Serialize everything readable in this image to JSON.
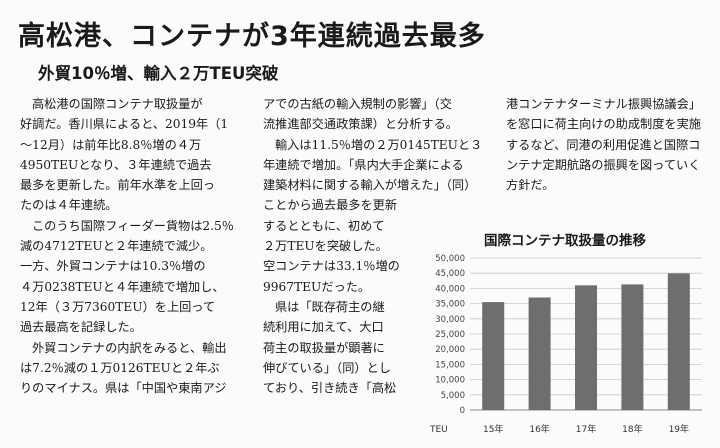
{
  "article": {
    "headline": "高松港、コンテナが3年連続過去最多",
    "subheadline": "外貿10％増、輸入２万TEU突破",
    "columns": [
      [
        {
          "text": "高松港の国際コンテナ取扱量が",
          "indent": true
        },
        {
          "text": "好調だ。香川県によると、2019年（1"
        },
        {
          "text": "〜12月）は前年比8.8％増の４万"
        },
        {
          "text": "4950TEUとなり、３年連続で過去"
        },
        {
          "text": "最多を更新した。前年水準を上回っ"
        },
        {
          "text": "たのは４年連続。"
        },
        {
          "text": "このうち国際フィーダー貨物は2.5％",
          "indent": true
        },
        {
          "text": "減の4712TEUと２年連続で減少。"
        },
        {
          "text": "一方、外貿コンテナは10.3％増の"
        },
        {
          "text": "４万0238TEUと４年連続で増加し、"
        },
        {
          "text": "12年（３万7360TEU）を上回って"
        },
        {
          "text": "過去最高を記録した。"
        },
        {
          "text": "外貿コンテナの内訳をみると、輸出",
          "indent": true
        },
        {
          "text": "は7.2％減の１万0126TEUと２年ぶ"
        },
        {
          "text": "りのマイナス。県は「中国や東南アジ"
        }
      ],
      [
        {
          "text": "アでの古紙の輸入規制の影響」（交"
        },
        {
          "text": "流推進部交通政策課）と分析する。"
        },
        {
          "text": "輸入は11.5％増の２万0145TEUと３",
          "indent": true
        },
        {
          "text": "年連続で増加。「県内大手企業による"
        },
        {
          "text": "建築材料に関する輸入が増えた」（同）"
        },
        {
          "text": "ことから過去最多を更新"
        },
        {
          "text": "するとともに、初めて"
        },
        {
          "text": "２万TEUを突破した。"
        },
        {
          "text": "空コンテナは33.1％増の"
        },
        {
          "text": "9967TEUだった。"
        },
        {
          "text": "県は「既存荷主の継",
          "indent": true
        },
        {
          "text": "続利用に加えて、大口"
        },
        {
          "text": "荷主の取扱量が顕著に"
        },
        {
          "text": "伸びている」（同）とし"
        },
        {
          "text": "ており、引き続き「高松"
        }
      ],
      [
        {
          "text": "港コンテナターミナル振興協議会」"
        },
        {
          "text": "を窓口に荷主向けの助成制度を実施"
        },
        {
          "text": "するなど、同港の利用促進と国際コ"
        },
        {
          "text": "ンテナ定期航路の振興を図っていく"
        },
        {
          "text": "方針だ。"
        }
      ]
    ]
  },
  "chart_data": {
    "type": "bar",
    "title": "国際コンテナ取扱量の推移",
    "categories": [
      "15年",
      "16年",
      "17年",
      "18年",
      "19年"
    ],
    "values": [
      35500,
      37000,
      41000,
      41300,
      44950
    ],
    "ylabel": "TEU",
    "ylim": [
      0,
      50000
    ],
    "yticks": [
      "0",
      "5,000",
      "10,000",
      "15,000",
      "20,000",
      "25,000",
      "30,000",
      "35,000",
      "40,000",
      "45,000",
      "50,000"
    ],
    "grid": true,
    "bar_color": "#6e6e6e"
  }
}
